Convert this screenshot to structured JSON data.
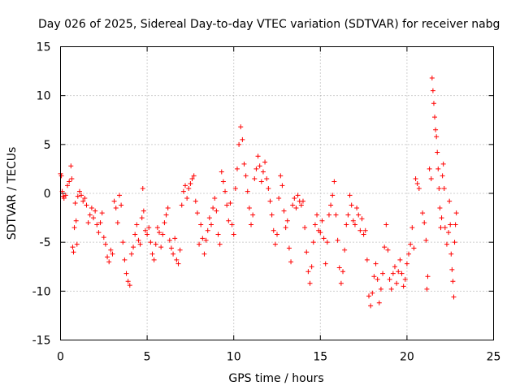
{
  "chart_data": {
    "type": "scatter",
    "title": "Day 026 of 2025, Sidereal Day-to-day VTEC variation (SDTVAR) for receiver nabg",
    "xlabel": "GPS time / hours",
    "ylabel": "SDTVAR / TECUs",
    "xlim": [
      0,
      25
    ],
    "ylim": [
      -15,
      15
    ],
    "xticks": [
      0,
      5,
      10,
      15,
      20,
      25
    ],
    "yticks": [
      -15,
      -10,
      -5,
      0,
      5,
      10,
      15
    ],
    "xtick_labels": [
      "0",
      "5",
      "10",
      "15",
      "20",
      "25"
    ],
    "ytick_labels": [
      "-15",
      "-10",
      "-5",
      "0",
      "5",
      "10",
      "15"
    ],
    "grid": true,
    "marker": "+",
    "color": "#ff0000",
    "series": [
      {
        "name": "nabg",
        "points": [
          [
            0.0,
            2.0
          ],
          [
            0.05,
            1.8
          ],
          [
            0.1,
            0.2
          ],
          [
            0.15,
            -0.3
          ],
          [
            0.2,
            -0.5
          ],
          [
            0.3,
            -0.2
          ],
          [
            0.4,
            0.8
          ],
          [
            0.5,
            1.2
          ],
          [
            0.6,
            2.8
          ],
          [
            0.65,
            1.5
          ],
          [
            0.7,
            -5.5
          ],
          [
            0.75,
            -6.0
          ],
          [
            0.8,
            -3.5
          ],
          [
            0.85,
            -1.0
          ],
          [
            0.9,
            -2.8
          ],
          [
            0.95,
            -5.2
          ],
          [
            1.0,
            -0.3
          ],
          [
            1.1,
            0.2
          ],
          [
            1.2,
            -0.2
          ],
          [
            1.3,
            -0.8
          ],
          [
            1.4,
            -0.5
          ],
          [
            1.5,
            -1.2
          ],
          [
            1.6,
            -3.0
          ],
          [
            1.7,
            -2.2
          ],
          [
            1.8,
            -1.5
          ],
          [
            1.9,
            -2.5
          ],
          [
            2.0,
            -1.8
          ],
          [
            2.1,
            -3.2
          ],
          [
            2.2,
            -4.0
          ],
          [
            2.3,
            -3.0
          ],
          [
            2.4,
            -2.0
          ],
          [
            2.5,
            -4.5
          ],
          [
            2.6,
            -5.2
          ],
          [
            2.7,
            -6.5
          ],
          [
            2.8,
            -7.0
          ],
          [
            2.9,
            -5.8
          ],
          [
            3.0,
            -6.2
          ],
          [
            3.1,
            -0.8
          ],
          [
            3.2,
            -1.5
          ],
          [
            3.3,
            -3.0
          ],
          [
            3.4,
            -0.2
          ],
          [
            3.5,
            -1.2
          ],
          [
            3.6,
            -5.0
          ],
          [
            3.7,
            -6.8
          ],
          [
            3.8,
            -8.2
          ],
          [
            3.9,
            -9.0
          ],
          [
            4.0,
            -9.4
          ],
          [
            4.1,
            -6.2
          ],
          [
            4.2,
            -5.5
          ],
          [
            4.3,
            -4.2
          ],
          [
            4.4,
            -3.2
          ],
          [
            4.5,
            -4.8
          ],
          [
            4.6,
            -5.2
          ],
          [
            4.7,
            -2.5
          ],
          [
            4.75,
            0.5
          ],
          [
            4.8,
            -1.8
          ],
          [
            4.9,
            -3.8
          ],
          [
            5.0,
            -4.2
          ],
          [
            5.1,
            -3.5
          ],
          [
            5.2,
            -5.0
          ],
          [
            5.3,
            -6.2
          ],
          [
            5.4,
            -6.8
          ],
          [
            5.5,
            -5.2
          ],
          [
            5.6,
            -3.5
          ],
          [
            5.7,
            -4.0
          ],
          [
            5.8,
            -5.5
          ],
          [
            5.9,
            -4.2
          ],
          [
            6.0,
            -3.0
          ],
          [
            6.1,
            -2.2
          ],
          [
            6.2,
            -1.5
          ],
          [
            6.3,
            -4.8
          ],
          [
            6.4,
            -5.6
          ],
          [
            6.5,
            -6.2
          ],
          [
            6.6,
            -4.6
          ],
          [
            6.7,
            -6.8
          ],
          [
            6.8,
            -7.2
          ],
          [
            6.9,
            -5.8
          ],
          [
            7.0,
            -1.2
          ],
          [
            7.1,
            0.2
          ],
          [
            7.2,
            0.8
          ],
          [
            7.3,
            -0.5
          ],
          [
            7.4,
            0.5
          ],
          [
            7.5,
            1.0
          ],
          [
            7.6,
            1.5
          ],
          [
            7.7,
            1.8
          ],
          [
            7.8,
            -0.8
          ],
          [
            7.9,
            -2.0
          ],
          [
            8.0,
            -5.2
          ],
          [
            8.1,
            -3.2
          ],
          [
            8.2,
            -4.6
          ],
          [
            8.3,
            -6.2
          ],
          [
            8.4,
            -4.8
          ],
          [
            8.5,
            -3.8
          ],
          [
            8.6,
            -2.5
          ],
          [
            8.7,
            -3.2
          ],
          [
            8.8,
            -1.5
          ],
          [
            8.9,
            -0.5
          ],
          [
            9.0,
            -1.8
          ],
          [
            9.1,
            -4.2
          ],
          [
            9.2,
            -5.2
          ],
          [
            9.3,
            2.2
          ],
          [
            9.4,
            1.2
          ],
          [
            9.5,
            0.2
          ],
          [
            9.6,
            -1.2
          ],
          [
            9.7,
            -2.8
          ],
          [
            9.8,
            -1.0
          ],
          [
            9.9,
            -3.2
          ],
          [
            10.0,
            -4.2
          ],
          [
            10.1,
            0.5
          ],
          [
            10.2,
            2.5
          ],
          [
            10.3,
            5.0
          ],
          [
            10.4,
            6.8
          ],
          [
            10.5,
            5.5
          ],
          [
            10.6,
            3.0
          ],
          [
            10.7,
            1.8
          ],
          [
            10.8,
            0.2
          ],
          [
            10.9,
            -1.5
          ],
          [
            11.0,
            -3.2
          ],
          [
            11.1,
            -2.2
          ],
          [
            11.2,
            1.5
          ],
          [
            11.3,
            2.5
          ],
          [
            11.4,
            3.8
          ],
          [
            11.5,
            2.8
          ],
          [
            11.6,
            1.2
          ],
          [
            11.7,
            2.2
          ],
          [
            11.8,
            3.2
          ],
          [
            11.9,
            1.5
          ],
          [
            12.0,
            0.5
          ],
          [
            12.1,
            -0.8
          ],
          [
            12.2,
            -2.2
          ],
          [
            12.3,
            -3.8
          ],
          [
            12.4,
            -5.2
          ],
          [
            12.5,
            -4.2
          ],
          [
            12.6,
            -0.5
          ],
          [
            12.7,
            1.8
          ],
          [
            12.8,
            0.8
          ],
          [
            12.9,
            -1.8
          ],
          [
            13.0,
            -3.5
          ],
          [
            13.1,
            -2.8
          ],
          [
            13.2,
            -5.6
          ],
          [
            13.3,
            -7.0
          ],
          [
            13.4,
            -1.2
          ],
          [
            13.5,
            -0.5
          ],
          [
            13.6,
            -1.5
          ],
          [
            13.7,
            -0.2
          ],
          [
            13.8,
            -0.8
          ],
          [
            13.9,
            -1.2
          ],
          [
            14.0,
            -0.8
          ],
          [
            14.1,
            -3.5
          ],
          [
            14.2,
            -6.0
          ],
          [
            14.3,
            -8.0
          ],
          [
            14.4,
            -9.2
          ],
          [
            14.5,
            -7.5
          ],
          [
            14.6,
            -5.0
          ],
          [
            14.7,
            -3.2
          ],
          [
            14.8,
            -2.2
          ],
          [
            14.9,
            -3.8
          ],
          [
            15.0,
            -4.0
          ],
          [
            15.1,
            -2.8
          ],
          [
            15.2,
            -4.6
          ],
          [
            15.3,
            -7.2
          ],
          [
            15.4,
            -5.0
          ],
          [
            15.5,
            -2.2
          ],
          [
            15.6,
            -1.2
          ],
          [
            15.7,
            -0.2
          ],
          [
            15.8,
            1.2
          ],
          [
            15.9,
            -2.2
          ],
          [
            16.0,
            -4.8
          ],
          [
            16.1,
            -7.6
          ],
          [
            16.2,
            -9.2
          ],
          [
            16.3,
            -8.0
          ],
          [
            16.4,
            -5.8
          ],
          [
            16.5,
            -3.2
          ],
          [
            16.6,
            -2.2
          ],
          [
            16.7,
            -0.2
          ],
          [
            16.8,
            -1.2
          ],
          [
            16.9,
            -2.8
          ],
          [
            17.0,
            -3.2
          ],
          [
            17.1,
            -1.5
          ],
          [
            17.2,
            -2.2
          ],
          [
            17.3,
            -3.8
          ],
          [
            17.4,
            -2.6
          ],
          [
            17.5,
            -4.2
          ],
          [
            17.6,
            -3.8
          ],
          [
            17.7,
            -6.8
          ],
          [
            17.8,
            -10.5
          ],
          [
            17.9,
            -11.5
          ],
          [
            18.0,
            -10.2
          ],
          [
            18.1,
            -8.5
          ],
          [
            18.2,
            -7.2
          ],
          [
            18.3,
            -8.8
          ],
          [
            18.4,
            -11.2
          ],
          [
            18.5,
            -9.8
          ],
          [
            18.6,
            -8.2
          ],
          [
            18.7,
            -5.5
          ],
          [
            18.8,
            -3.2
          ],
          [
            18.9,
            -5.8
          ],
          [
            19.0,
            -8.8
          ],
          [
            19.1,
            -9.8
          ],
          [
            19.2,
            -8.2
          ],
          [
            19.3,
            -7.5
          ],
          [
            19.4,
            -9.2
          ],
          [
            19.5,
            -8.0
          ],
          [
            19.6,
            -6.8
          ],
          [
            19.7,
            -8.2
          ],
          [
            19.8,
            -9.5
          ],
          [
            19.9,
            -8.8
          ],
          [
            20.0,
            -7.2
          ],
          [
            20.1,
            -6.2
          ],
          [
            20.2,
            -5.2
          ],
          [
            20.3,
            -3.5
          ],
          [
            20.4,
            -5.6
          ],
          [
            20.5,
            1.5
          ],
          [
            20.6,
            1.0
          ],
          [
            20.7,
            0.5
          ],
          [
            20.9,
            -2.0
          ],
          [
            21.0,
            -3.0
          ],
          [
            21.1,
            -4.8
          ],
          [
            21.15,
            -9.8
          ],
          [
            21.2,
            -8.5
          ],
          [
            21.3,
            2.5
          ],
          [
            21.4,
            1.5
          ],
          [
            21.45,
            11.8
          ],
          [
            21.5,
            10.5
          ],
          [
            21.55,
            9.2
          ],
          [
            21.6,
            7.8
          ],
          [
            21.65,
            6.5
          ],
          [
            21.7,
            5.8
          ],
          [
            21.75,
            4.2
          ],
          [
            21.8,
            2.5
          ],
          [
            21.85,
            0.5
          ],
          [
            21.9,
            -1.5
          ],
          [
            21.95,
            -3.5
          ],
          [
            22.0,
            -2.5
          ],
          [
            22.05,
            1.8
          ],
          [
            22.1,
            3.0
          ],
          [
            22.15,
            0.5
          ],
          [
            22.2,
            -3.5
          ],
          [
            22.3,
            -5.2
          ],
          [
            22.4,
            -4.0
          ],
          [
            22.45,
            -0.8
          ],
          [
            22.5,
            -3.2
          ],
          [
            22.55,
            -6.2
          ],
          [
            22.6,
            -7.8
          ],
          [
            22.65,
            -9.0
          ],
          [
            22.7,
            -10.6
          ],
          [
            22.75,
            -5.0
          ],
          [
            22.8,
            -3.2
          ],
          [
            22.85,
            -2.0
          ]
        ]
      }
    ]
  }
}
